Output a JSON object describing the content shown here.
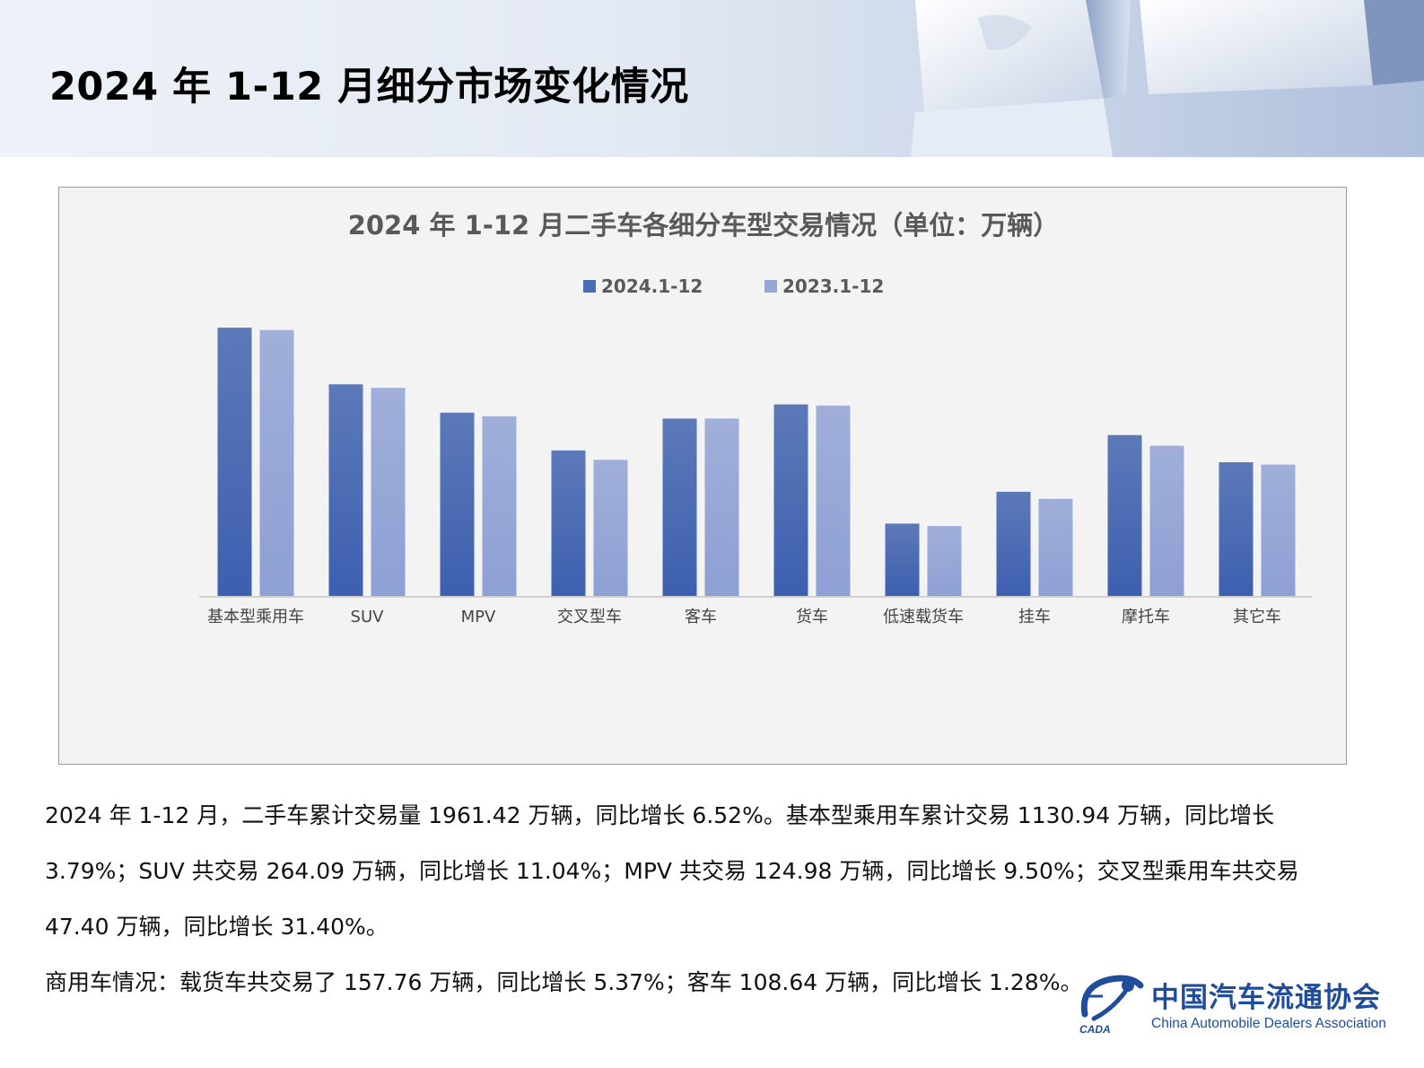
{
  "page": {
    "title": "2024 年 1-12 月细分市场变化情况"
  },
  "chart_data": {
    "type": "bar",
    "title": "2024 年 1-12 月二手车各细分车型交易情况（单位：万辆）",
    "xlabel": "",
    "ylabel": "",
    "categories": [
      "基本型乘用车",
      "SUV",
      "MPV",
      "交叉型车",
      "客车",
      "货车",
      "低速载货车",
      "挂车",
      "摩托车",
      "其它车"
    ],
    "series": [
      {
        "name": "2024.1-12",
        "values": [
          228,
          180,
          156,
          124,
          151,
          163,
          62,
          89,
          137,
          114
        ]
      },
      {
        "name": "2023.1-12",
        "values": [
          226,
          177,
          153,
          116,
          151,
          162,
          60,
          83,
          128,
          112
        ]
      }
    ],
    "ylim": [
      0,
      260
    ],
    "legend_position": "top",
    "grid": false,
    "axis_tick_labels": false,
    "colors": {
      "series_2024": "#4a6cb5",
      "series_2023": "#95a6d7",
      "axis": "#d0d0d0",
      "title": "#595959"
    }
  },
  "body": {
    "paragraph1": "2024 年 1-12 月，二手车累计交易量 1961.42 万辆，同比增长 6.52%。基本型乘用车累计交易 1130.94 万辆，同比增长 3.79%；SUV 共交易 264.09 万辆，同比增长 11.04%；MPV 共交易 124.98 万辆，同比增长 9.50%；交叉型乘用车共交易 47.40 万辆，同比增长 31.40%。",
    "paragraph2": "商用车情况：载货车共交易了 157.76 万辆，同比增长 5.37%；客车 108.64 万辆，同比增长 1.28%。"
  },
  "logo": {
    "name_cn": "中国汽车流通协会",
    "name_en": "China Automobile Dealers Association",
    "abbr": "CADA"
  }
}
